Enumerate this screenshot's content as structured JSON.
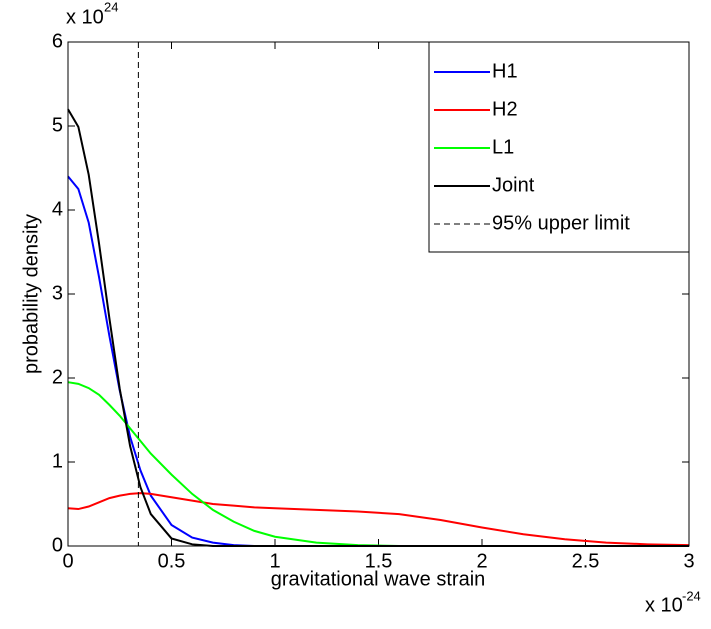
{
  "chart_data": {
    "type": "line",
    "x_label": "gravitational wave strain",
    "y_label": "probability density",
    "x_multiplier": "x 10",
    "x_exponent": "-24",
    "y_multiplier": "x 10",
    "y_exponent": "24",
    "x": [
      0,
      0.05,
      0.1,
      0.15,
      0.2,
      0.25,
      0.3,
      0.35,
      0.4,
      0.5,
      0.6,
      0.7,
      0.8,
      0.9,
      1.0,
      1.2,
      1.4,
      1.6,
      1.8,
      2.0,
      2.2,
      2.4,
      2.6,
      2.8,
      3.0
    ],
    "series": [
      {
        "name": "H1",
        "color": "#0000ff",
        "values": [
          4.4,
          4.25,
          3.85,
          3.2,
          2.5,
          1.85,
          1.3,
          0.9,
          0.6,
          0.25,
          0.1,
          0.04,
          0.01,
          0,
          0,
          0,
          0,
          0,
          0,
          0,
          0,
          0,
          0,
          0,
          0
        ]
      },
      {
        "name": "H2",
        "color": "#ff0000",
        "values": [
          0.45,
          0.44,
          0.47,
          0.52,
          0.57,
          0.6,
          0.62,
          0.63,
          0.62,
          0.58,
          0.54,
          0.5,
          0.48,
          0.46,
          0.45,
          0.43,
          0.41,
          0.38,
          0.31,
          0.22,
          0.14,
          0.08,
          0.04,
          0.02,
          0.01
        ]
      },
      {
        "name": "L1",
        "color": "#00ff00",
        "values": [
          1.95,
          1.93,
          1.88,
          1.8,
          1.68,
          1.55,
          1.4,
          1.25,
          1.1,
          0.85,
          0.62,
          0.43,
          0.29,
          0.18,
          0.11,
          0.04,
          0.01,
          0,
          0,
          0,
          0,
          0,
          0,
          0,
          0
        ]
      },
      {
        "name": "Joint",
        "color": "#000000",
        "values": [
          5.2,
          4.99,
          4.42,
          3.6,
          2.71,
          1.87,
          1.19,
          0.7,
          0.38,
          0.09,
          0.02,
          0,
          0,
          0,
          0,
          0,
          0,
          0,
          0,
          0,
          0,
          0,
          0,
          0,
          0
        ]
      }
    ],
    "upper_limit": {
      "name": "95% upper limit",
      "value": 0.34,
      "color": "#000000",
      "dashed": true
    },
    "xlim": [
      0,
      3
    ],
    "xticks": [
      0,
      0.5,
      1,
      1.5,
      2,
      2.5,
      3
    ],
    "ylim": [
      0,
      6
    ],
    "yticks": [
      0,
      1,
      2,
      3,
      4,
      5,
      6
    ],
    "legend": "upper right",
    "grid": false
  }
}
